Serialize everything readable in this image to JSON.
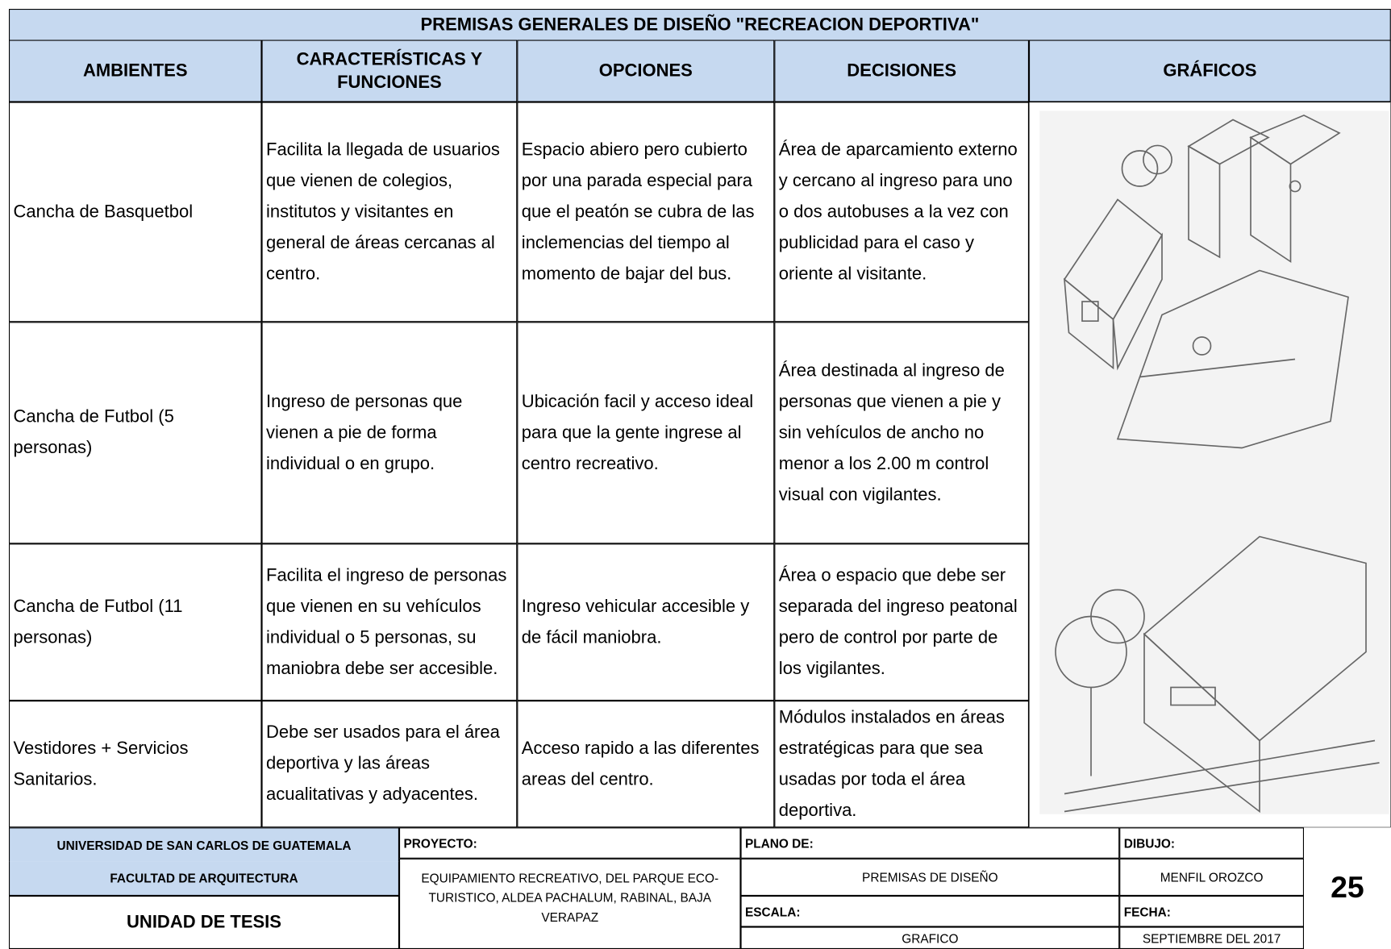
{
  "title": "PREMISAS GENERALES DE DISEÑO \"RECREACION DEPORTIVA\"",
  "headers": [
    "AMBIENTES",
    "CARACTERÍSTICAS Y FUNCIONES",
    "OPCIONES",
    "DECISIONES",
    "GRÁFICOS"
  ],
  "rows": [
    [
      "Cancha de Basquetbol",
      "Facilita la llegada de usuarios que vienen de colegios, institutos y visitantes en general de áreas cercanas al centro.",
      "Espacio abiero pero cubierto por una parada especial para que el peatón se cubra de las inclemencias del tiempo al momento de bajar del bus.",
      "Área de aparcamiento externo y cercano al ingreso para uno o dos autobuses a la vez con publicidad para el caso y oriente al visitante."
    ],
    [
      "Cancha de Futbol (5 personas)",
      "Ingreso de personas que vienen a pie de forma individual o en grupo.",
      "Ubicación facil y acceso ideal para que la gente ingrese al centro recreativo.",
      "Área destinada al ingreso de personas que vienen a pie y sin vehículos de ancho no menor a los 2.00 m control visual con vigilantes."
    ],
    [
      "Cancha de Futbol (11 personas)",
      "Facilita el ingreso de personas que vienen en su vehículos individual o 5 personas, su maniobra debe ser accesible.",
      "Ingreso vehicular accesible y de fácil maniobra.",
      "Área o espacio que debe ser separada del ingreso peatonal pero de control por parte de los vigilantes."
    ],
    [
      "Vestidores + Servicios Sanitarios.",
      "Debe ser usados para el área deportiva y las áreas acualitativas y adyacentes.",
      "Acceso rapido a las diferentes areas del centro.",
      "Módulos instalados en áreas estratégicas para que sea usadas por toda el área deportiva."
    ]
  ],
  "footer": {
    "university": "UNIVERSIDAD DE SAN CARLOS DE GUATEMALA",
    "faculty": "FACULTAD DE ARQUITECTURA",
    "unit": "UNIDAD DE TESIS",
    "project_label": "PROYECTO:",
    "project": "EQUIPAMIENTO RECREATIVO, DEL PARQUE ECO-TURISTICO, ALDEA PACHALUM, RABINAL, BAJA VERAPAZ",
    "plan_label": "PLANO DE:",
    "plan": "PREMISAS DE DISEÑO",
    "scale_label": "ESCALA:",
    "scale": "GRAFICO",
    "drawn_label": "DIBUJO:",
    "drawn": "MENFIL OROZCO",
    "date_label": "FECHA:",
    "date": "SEPTIEMBRE DEL 2017",
    "page": "25"
  }
}
